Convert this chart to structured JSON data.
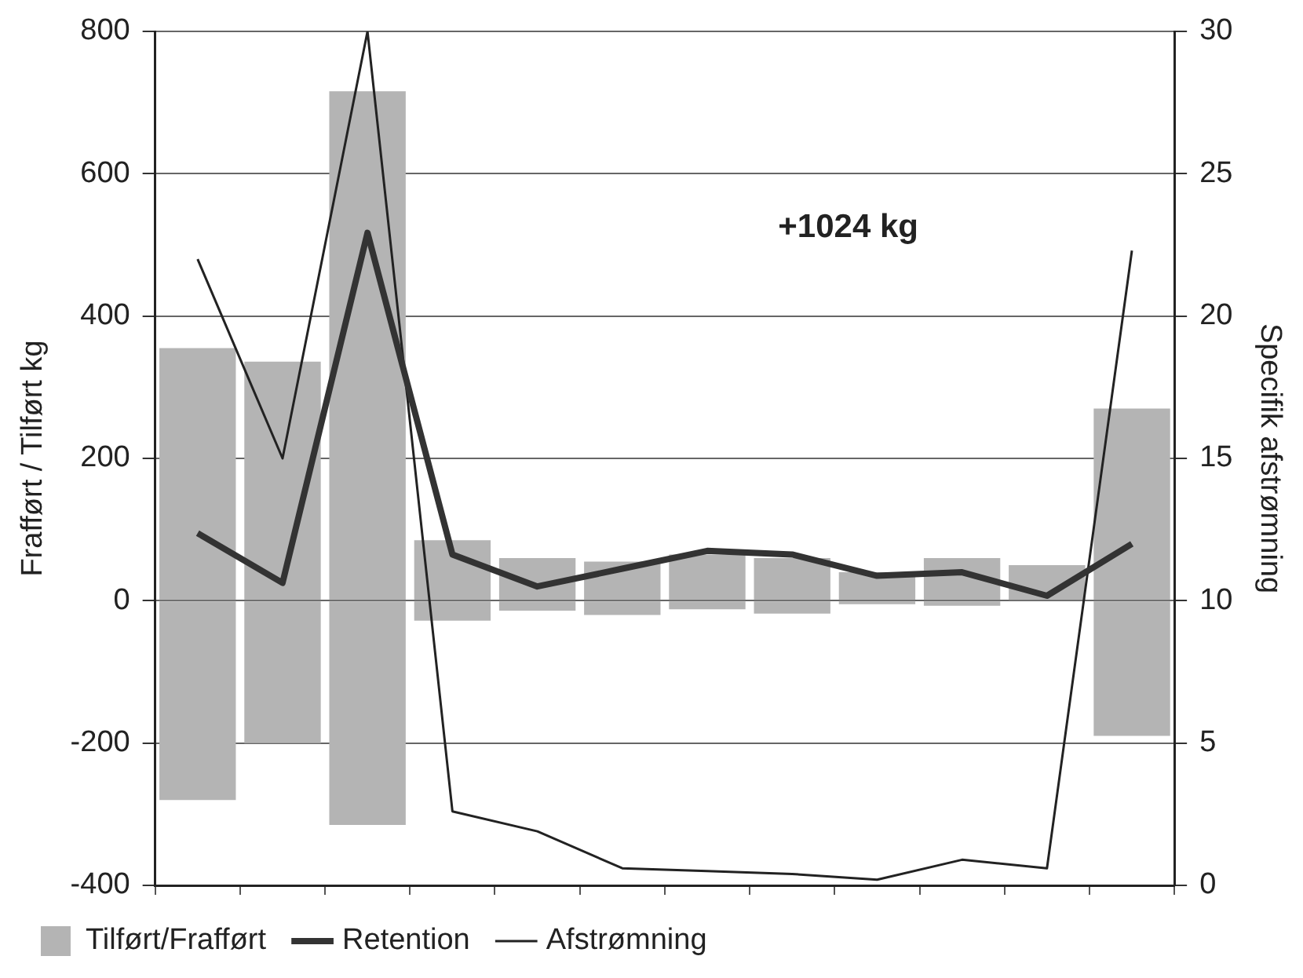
{
  "chart_data": {
    "type": "bar",
    "ylabel": "Frafført / Tilført kg",
    "y2label": "Specifik afstrømning",
    "categories": [
      null,
      null,
      null,
      null,
      null,
      null,
      null,
      null,
      null,
      null,
      null,
      null
    ],
    "stacked": true,
    "series": [
      {
        "name": "Tilført/Frafført",
        "color": "#b4b4b4",
        "values": [
          355,
          336,
          716,
          85,
          60,
          55,
          65,
          60,
          40,
          60,
          50,
          270
        ]
      },
      {
        "color": "#b4b4b4",
        "values": [
          -280,
          -200,
          -315,
          -28,
          -14,
          -20,
          -12,
          -18,
          -5,
          -7,
          null,
          -190
        ]
      },
      {
        "name": "Retention",
        "type": "line",
        "color": "#333333",
        "values": [
          95,
          25,
          517,
          65,
          20,
          45,
          70,
          65,
          35,
          40,
          7,
          80
        ]
      },
      {
        "name": "Afstrømning",
        "type": "line",
        "axis": "y2",
        "color": "#222222",
        "values": [
          22.0,
          15.0,
          30,
          2.6,
          1.9,
          0.6,
          0.5,
          0.4,
          0.2,
          0.9,
          0.6,
          22.3
        ]
      }
    ],
    "ylim": [
      -400,
      800
    ],
    "yticks": [
      -400,
      -200,
      0,
      200,
      400,
      600,
      800
    ],
    "y2lim": [
      0,
      30
    ],
    "y2ticks": [
      0,
      5,
      10,
      15,
      20,
      25,
      30
    ],
    "grid": "y",
    "legend": "bottom",
    "marker": "none",
    "annotations": [
      "+1024 kg"
    ]
  }
}
